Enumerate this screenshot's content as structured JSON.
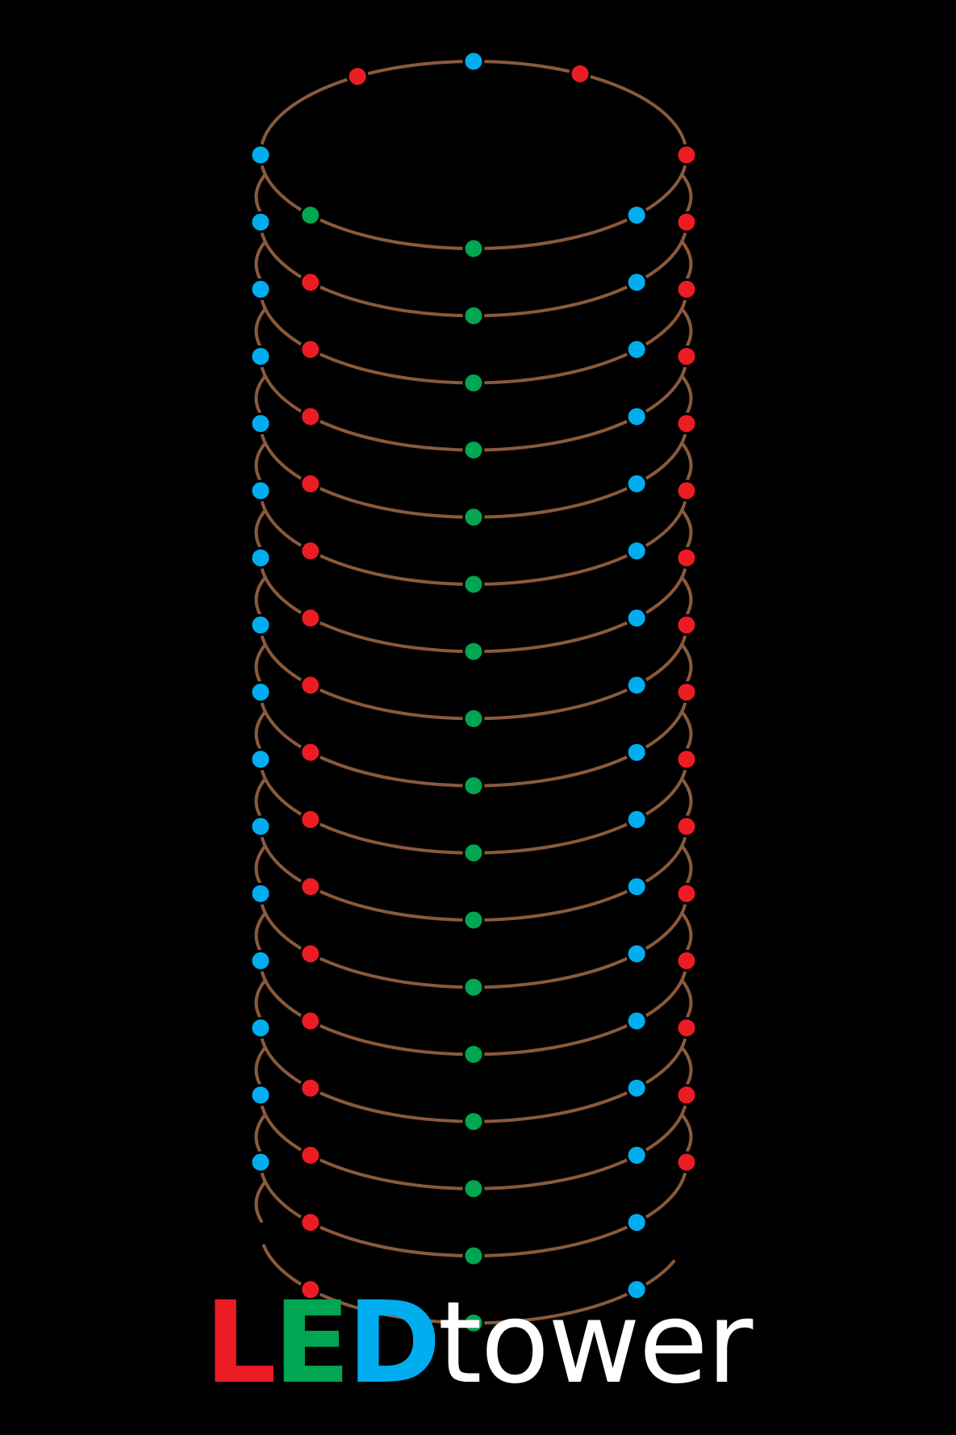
{
  "colors": {
    "background": "#000000",
    "wire": "#8a5a3b",
    "led_red": "#ec1c24",
    "led_green": "#00a651",
    "led_blue": "#00aeef",
    "title_white": "#ffffff"
  },
  "tower": {
    "top_ring_led_colors": [
      "blue",
      "green",
      "red",
      "blue",
      "green",
      "red",
      "blue",
      "red"
    ],
    "stacked_ring_led_colors": [
      "blue",
      "red",
      "green",
      "blue",
      "red"
    ],
    "bottom_ring_led_colors": [
      "red",
      "green",
      "blue"
    ],
    "stacked_ring_count": 15
  },
  "logo": {
    "part_l": "L",
    "part_e": "E",
    "part_d": "D",
    "part_rest": "tower",
    "part_l_color": "#ec1c24",
    "part_e_color": "#00a651",
    "part_d_color": "#00aeef",
    "part_rest_color": "#ffffff"
  }
}
